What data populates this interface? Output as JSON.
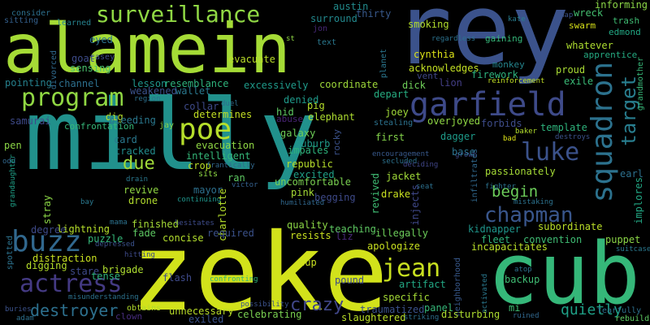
{
  "background": "#000000",
  "words": [
    {
      "text": "milly",
      "color": "#21918c"
    },
    {
      "text": "zeke",
      "color": "#d2e21b"
    },
    {
      "text": "rey",
      "color": "#3b528b"
    },
    {
      "text": "alamein",
      "color": "#a5db36"
    },
    {
      "text": "cub",
      "color": "#35b779"
    },
    {
      "text": "garfield",
      "color": "#3e4a89"
    },
    {
      "text": "squadron",
      "color": "#2c728e"
    },
    {
      "text": "surveillance",
      "color": "#8fd744"
    },
    {
      "text": "program",
      "color": "#90d743"
    },
    {
      "text": "poe",
      "color": "#b5de2b"
    },
    {
      "text": "buzz",
      "color": "#31688e"
    },
    {
      "text": "luke",
      "color": "#3b528b"
    },
    {
      "text": "actress",
      "color": "#443a83"
    },
    {
      "text": "jean",
      "color": "#c8e020"
    },
    {
      "text": "chapman",
      "color": "#39568c"
    },
    {
      "text": "target",
      "color": "#287d8e"
    },
    {
      "text": "destroyer",
      "color": "#2d708e"
    },
    {
      "text": "due",
      "color": "#a0da39"
    },
    {
      "text": "crazy",
      "color": "#404688"
    },
    {
      "text": "begin",
      "color": "#6ccd5a"
    },
    {
      "text": "quietly",
      "color": "#1fa187"
    },
    {
      "text": "incapacitates",
      "color": "#b8de29"
    },
    {
      "text": "informing",
      "color": "#8bd646"
    },
    {
      "text": "wreck",
      "color": "#44bf70"
    },
    {
      "text": "trash",
      "color": "#3fbc73"
    },
    {
      "text": "edmond",
      "color": "#22a884"
    },
    {
      "text": "apprentice",
      "color": "#25ab82"
    },
    {
      "text": "whatever",
      "color": "#addc30"
    },
    {
      "text": "swarm",
      "color": "#d8e219"
    },
    {
      "text": "gaining",
      "color": "#35b779"
    },
    {
      "text": "smoking",
      "color": "#b2dd2d"
    },
    {
      "text": "cynthia",
      "color": "#dde318"
    },
    {
      "text": "acknowledges",
      "color": "#c2df23"
    },
    {
      "text": "firework",
      "color": "#2db27d"
    },
    {
      "text": "monkey",
      "color": "#25858e"
    },
    {
      "text": "proud",
      "color": "#a8db34"
    },
    {
      "text": "exile",
      "color": "#3aba76"
    },
    {
      "text": "vent",
      "color": "#3f4889"
    },
    {
      "text": "dick",
      "color": "#6ece58"
    },
    {
      "text": "lion",
      "color": "#433e85"
    },
    {
      "text": "reinforcement",
      "color": "#c0df25"
    },
    {
      "text": "evacuate",
      "color": "#bade28"
    },
    {
      "text": "coordinate",
      "color": "#9fda3a"
    },
    {
      "text": "excessively",
      "color": "#1f9a8a"
    },
    {
      "text": "resemblance",
      "color": "#2eb37c"
    },
    {
      "text": "lesson",
      "color": "#1f958b"
    },
    {
      "text": "weakened",
      "color": "#3b528b"
    },
    {
      "text": "wallet",
      "color": "#2a788e"
    },
    {
      "text": "channel",
      "color": "#2d708e"
    },
    {
      "text": "pointing",
      "color": "#26818e"
    },
    {
      "text": "divorced",
      "color": "#306a8e"
    },
    {
      "text": "eyed",
      "color": "#2c728e"
    },
    {
      "text": "goat",
      "color": "#3e4c8a"
    },
    {
      "text": "sensing",
      "color": "#4ac16d"
    },
    {
      "text": "consider",
      "color": "#2d708e"
    },
    {
      "text": "sitting",
      "color": "#34608d"
    },
    {
      "text": "learned",
      "color": "#26828e"
    },
    {
      "text": "casey",
      "color": "#3e4c8a"
    },
    {
      "text": "surround",
      "color": "#23898e"
    },
    {
      "text": "austin",
      "color": "#228c8d"
    },
    {
      "text": "thirty",
      "color": "#38598c"
    },
    {
      "text": "jon",
      "color": "#482878"
    },
    {
      "text": "text",
      "color": "#2a788e"
    },
    {
      "text": "st",
      "color": "#8fd744"
    },
    {
      "text": "regardless",
      "color": "#2c728e"
    },
    {
      "text": "planet",
      "color": "#2a768e"
    },
    {
      "text": "kate",
      "color": "#287d8e"
    },
    {
      "text": "map",
      "color": "#3b528b"
    },
    {
      "text": "grandmother",
      "color": "#37b878"
    },
    {
      "text": "denied",
      "color": "#1f9a8a"
    },
    {
      "text": "pig",
      "color": "#b5de2b"
    },
    {
      "text": "hid",
      "color": "#5ec962"
    },
    {
      "text": "abuse",
      "color": "#482475"
    },
    {
      "text": "elephant",
      "color": "#addc30"
    },
    {
      "text": "joey",
      "color": "#9fda3a"
    },
    {
      "text": "depart",
      "color": "#27ad81"
    },
    {
      "text": "overjoyed",
      "color": "#8fd744"
    },
    {
      "text": "stealing",
      "color": "#2c728e"
    },
    {
      "text": "forbids",
      "color": "#3e4c8a"
    },
    {
      "text": "template",
      "color": "#2eb37c"
    },
    {
      "text": "destroys",
      "color": "#3b528b"
    },
    {
      "text": "baker",
      "color": "#b2dd2d"
    },
    {
      "text": "bad",
      "color": "#dde318"
    },
    {
      "text": "dig",
      "color": "#b5de2b"
    },
    {
      "text": "bleeding",
      "color": "#2a788e"
    },
    {
      "text": "collar",
      "color": "#3e4a89"
    },
    {
      "text": "duel",
      "color": "#2e6e8e"
    },
    {
      "text": "determines",
      "color": "#c2df23"
    },
    {
      "text": "samurai",
      "color": "#3e4a89"
    },
    {
      "text": "region",
      "color": "#2d708e"
    },
    {
      "text": "confrontation",
      "color": "#35b779"
    },
    {
      "text": "jay",
      "color": "#84d44b"
    },
    {
      "text": "galaxy",
      "color": "#6ece58"
    },
    {
      "text": "suburb",
      "color": "#1f9a8a"
    },
    {
      "text": "dagger",
      "color": "#1e9b8a"
    },
    {
      "text": "first",
      "color": "#84d44b"
    },
    {
      "text": "encouragement",
      "color": "#38598c"
    },
    {
      "text": "grown",
      "color": "#3e4a89"
    },
    {
      "text": "base",
      "color": "#2c728e"
    },
    {
      "text": "card",
      "color": "#2a788e"
    },
    {
      "text": "tracked",
      "color": "#228c8d"
    },
    {
      "text": "evacuation",
      "color": "#8fd744"
    },
    {
      "text": "intelligent",
      "color": "#35b779"
    },
    {
      "text": "impales",
      "color": "#2eb37c"
    },
    {
      "text": "rocky",
      "color": "#3b528b"
    },
    {
      "text": "pen",
      "color": "#8bd646"
    },
    {
      "text": "odd",
      "color": "#31688e"
    },
    {
      "text": "crop",
      "color": "#bade28"
    },
    {
      "text": "frantically",
      "color": "#31688e"
    },
    {
      "text": "republic",
      "color": "#b5de2b"
    },
    {
      "text": "secluded",
      "color": "#2c728e"
    },
    {
      "text": "deciding",
      "color": "#404688"
    },
    {
      "text": "infiltrates",
      "color": "#31688e"
    },
    {
      "text": "passionately",
      "color": "#a5db36"
    },
    {
      "text": "grandaughter",
      "color": "#1fa187"
    },
    {
      "text": "sits",
      "color": "#8fd744"
    },
    {
      "text": "drain",
      "color": "#2a788e"
    },
    {
      "text": "ran",
      "color": "#5ec962"
    },
    {
      "text": "victor",
      "color": "#34608d"
    },
    {
      "text": "excited",
      "color": "#1fa187"
    },
    {
      "text": "jacket",
      "color": "#a0da39"
    },
    {
      "text": "seat",
      "color": "#2d708e"
    },
    {
      "text": "fighter",
      "color": "#2c728e"
    },
    {
      "text": "earl",
      "color": "#2d708e"
    },
    {
      "text": "stray",
      "color": "#8bd646"
    },
    {
      "text": "revive",
      "color": "#90d743"
    },
    {
      "text": "mayor",
      "color": "#2d708e"
    },
    {
      "text": "uncomfortable",
      "color": "#7ad151"
    },
    {
      "text": "drone",
      "color": "#b2dd2d"
    },
    {
      "text": "continuing",
      "color": "#1f958b"
    },
    {
      "text": "charlotte",
      "color": "#b5de2b"
    },
    {
      "text": "pink",
      "color": "#a5db36"
    },
    {
      "text": "begging",
      "color": "#3e4a89"
    },
    {
      "text": "revived",
      "color": "#3fbc73"
    },
    {
      "text": "drake",
      "color": "#c8e020"
    },
    {
      "text": "injects",
      "color": "#3f4889"
    },
    {
      "text": "mistaking",
      "color": "#2c728e"
    },
    {
      "text": "implores",
      "color": "#22a884"
    },
    {
      "text": "bay",
      "color": "#2a788e"
    },
    {
      "text": "humiliated",
      "color": "#31688e"
    },
    {
      "text": "degree",
      "color": "#3e4a89"
    },
    {
      "text": "mama",
      "color": "#2c728e"
    },
    {
      "text": "hesitates",
      "color": "#3e4c8a"
    },
    {
      "text": "finished",
      "color": "#a5db36"
    },
    {
      "text": "quality",
      "color": "#8bd646"
    },
    {
      "text": "teaching",
      "color": "#5ec962"
    },
    {
      "text": "illegally",
      "color": "#6ccd5a"
    },
    {
      "text": "spotted",
      "color": "#2c728e"
    },
    {
      "text": "lightning",
      "color": "#b5de2b"
    },
    {
      "text": "fade",
      "color": "#5ec962"
    },
    {
      "text": "required",
      "color": "#3b528b"
    },
    {
      "text": "resists",
      "color": "#c8e020"
    },
    {
      "text": "liz",
      "color": "#482878"
    },
    {
      "text": "kidnapper",
      "color": "#1f958b"
    },
    {
      "text": "subordinate",
      "color": "#bade28"
    },
    {
      "text": "puppet",
      "color": "#8bd646"
    },
    {
      "text": "puzzle",
      "color": "#35b779"
    },
    {
      "text": "concise",
      "color": "#b2dd2d"
    },
    {
      "text": "depressed",
      "color": "#3b528b"
    },
    {
      "text": "apologize",
      "color": "#c8e020"
    },
    {
      "text": "fleet",
      "color": "#2eb37c"
    },
    {
      "text": "convention",
      "color": "#3fbc73"
    },
    {
      "text": "distraction",
      "color": "#c8e020"
    },
    {
      "text": "suitcase",
      "color": "#2a788e"
    },
    {
      "text": "hitting",
      "color": "#3e4a89"
    },
    {
      "text": "digging",
      "color": "#b5de2b"
    },
    {
      "text": "stare",
      "color": "#3e4a89"
    },
    {
      "text": "brigade",
      "color": "#addc30"
    },
    {
      "text": "tense",
      "color": "#2eb37c"
    },
    {
      "text": "cup",
      "color": "#c8e020"
    },
    {
      "text": "artifact",
      "color": "#22a884"
    },
    {
      "text": "neighborhood",
      "color": "#38598c"
    },
    {
      "text": "atop",
      "color": "#2c728e"
    },
    {
      "text": "backup",
      "color": "#3fbc73"
    },
    {
      "text": "flash",
      "color": "#3e4a89"
    },
    {
      "text": "confronting",
      "color": "#2eb37c"
    },
    {
      "text": "pound",
      "color": "#3e4a89"
    },
    {
      "text": "activated",
      "color": "#2a788e"
    },
    {
      "text": "specific",
      "color": "#a5db36"
    },
    {
      "text": "panel",
      "color": "#35b779"
    },
    {
      "text": "misunderstanding",
      "color": "#2c728e"
    },
    {
      "text": "obtains",
      "color": "#b2dd2d"
    },
    {
      "text": "possibility",
      "color": "#3b528b"
    },
    {
      "text": "traumatized",
      "color": "#3b528b"
    },
    {
      "text": "mi",
      "color": "#3fbc73"
    },
    {
      "text": "tearfully",
      "color": "#2d708e"
    },
    {
      "text": "clown",
      "color": "#472d7b"
    },
    {
      "text": "unnecessary",
      "color": "#bade28"
    },
    {
      "text": "celebrating",
      "color": "#7ad151"
    },
    {
      "text": "disturbing",
      "color": "#addc30"
    },
    {
      "text": "rebuild",
      "color": "#5ec962"
    },
    {
      "text": "buries",
      "color": "#3b528b"
    },
    {
      "text": "adam",
      "color": "#2d708e"
    },
    {
      "text": "exiled",
      "color": "#3b528b"
    },
    {
      "text": "slaughtered",
      "color": "#bade28"
    },
    {
      "text": "striking",
      "color": "#2d708e"
    },
    {
      "text": "ruined",
      "color": "#31688e"
    }
  ]
}
